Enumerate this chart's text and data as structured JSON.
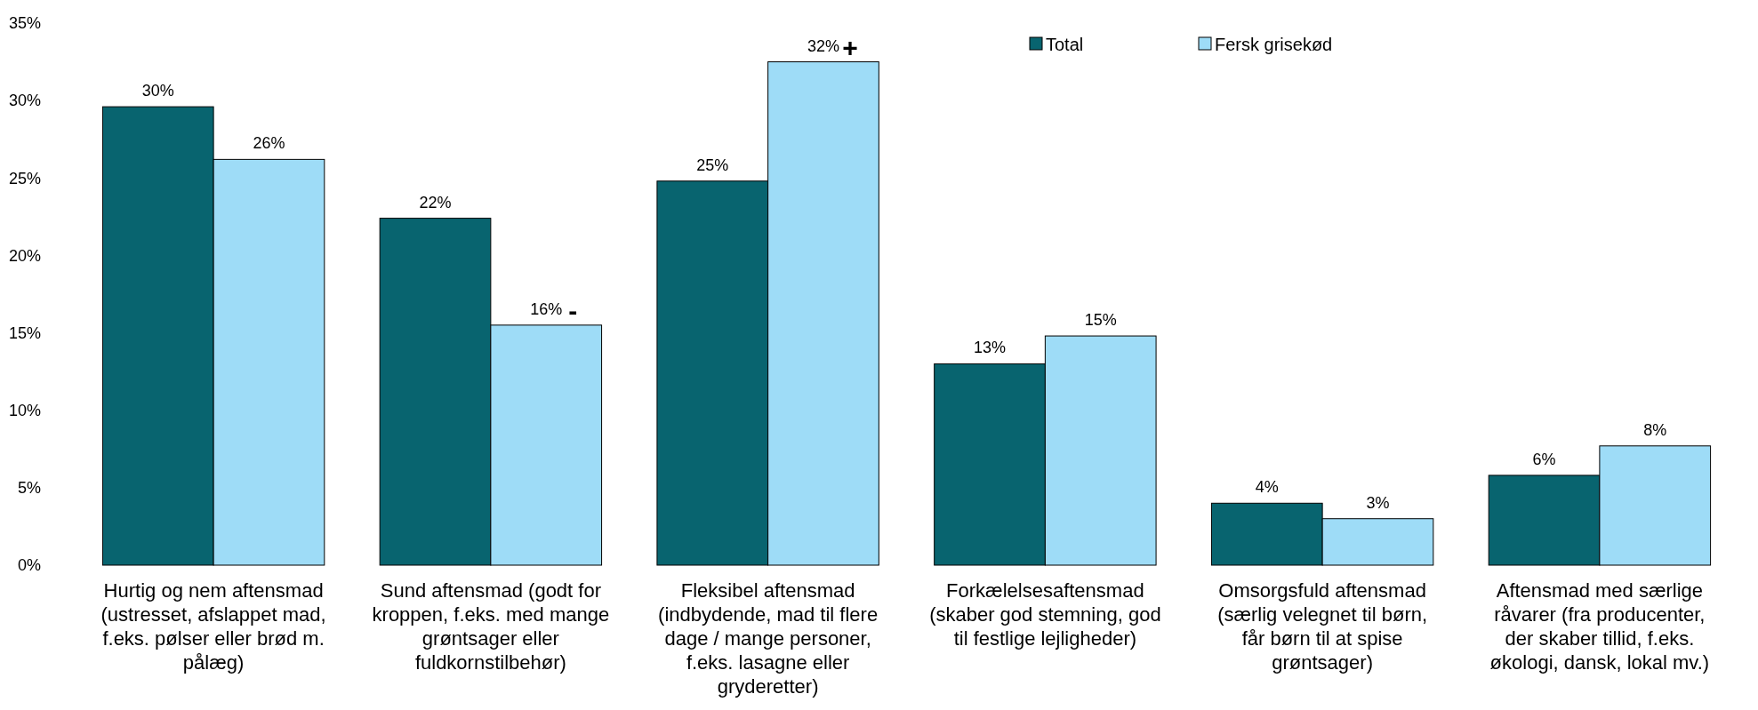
{
  "chart_data": {
    "type": "bar",
    "categories": [
      "Hurtig og nem aftensmad (ustresset, afslappet mad, f.eks. pølser eller brød m. pålæg)",
      "Sund aftensmad (godt for kroppen, f.eks. med mange grøntsager eller fuldkornstilbehør)",
      "Fleksibel aftensmad (indbydende, mad til flere dage / mange personer, f.eks. lasagne eller gryderetter)",
      "Forkælelsesaftensmad (skaber god stemning, god til festlige lejligheder)",
      "Omsorgsfuld aftensmad (særlig velegnet til børn, får børn til at spise grøntsager)",
      "Aftensmad med særlige råvarer (fra producenter, der skaber tillid, f.eks. økologi, dansk, lokal mv.)"
    ],
    "series": [
      {
        "name": "Total",
        "color": "#08646f",
        "values": [
          29.6,
          22.4,
          24.8,
          13.0,
          4.0,
          5.8
        ],
        "value_labels": [
          "30%",
          "22%",
          "25%",
          "13%",
          "4%",
          "6%"
        ]
      },
      {
        "name": "Fersk grisekød",
        "color": "#9edcf7",
        "values": [
          26.2,
          15.5,
          32.5,
          14.8,
          3.0,
          7.7
        ],
        "value_labels": [
          "26%",
          "16%",
          "32%",
          "15%",
          "3%",
          "8%"
        ]
      }
    ],
    "annotations": [
      {
        "text": "-",
        "x": "Sund aftensmad (godt for kroppen, f.eks. med mange grøntsager eller fuldkornstilbehør)",
        "y": 15.5
      },
      {
        "text": "+",
        "x": "Fleksibel aftensmad (indbydende, mad til flere dage / mange personer, f.eks. lasagne eller gryderetter)",
        "y": 32.5
      }
    ],
    "ylim": [
      0,
      35
    ],
    "yticks": [
      {
        "value": 0,
        "label": "0%"
      },
      {
        "value": 5,
        "label": "5%"
      },
      {
        "value": 10,
        "label": "10%"
      },
      {
        "value": 15,
        "label": "15%"
      },
      {
        "value": 20,
        "label": "20%"
      },
      {
        "value": 25,
        "label": "25%"
      },
      {
        "value": 30,
        "label": "30%"
      },
      {
        "value": 35,
        "label": "35%"
      }
    ],
    "legend": "top",
    "grid": false
  }
}
